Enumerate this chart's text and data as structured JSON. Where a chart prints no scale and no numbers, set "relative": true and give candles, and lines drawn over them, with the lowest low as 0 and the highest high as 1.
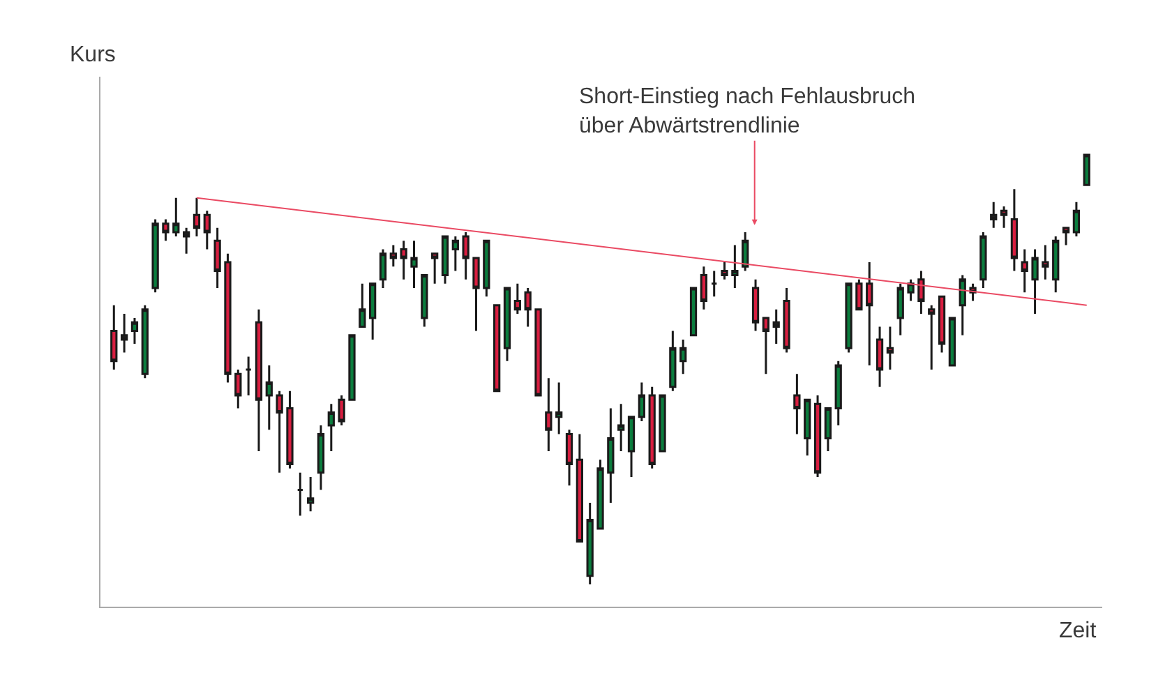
{
  "chart_data": {
    "type": "candlestick",
    "relative": true,
    "xlabel": "Zeit",
    "ylabel": "Kurs",
    "annotations": [
      "Short-Einstieg nach Fehlausbruch\nüber Abwärtstrendlinie"
    ],
    "categories": [
      null,
      null,
      null,
      null,
      null,
      null,
      null,
      null,
      null,
      null,
      null,
      null,
      null,
      null,
      null,
      null,
      null,
      null,
      null,
      null,
      null,
      null,
      null,
      null,
      null,
      null,
      null,
      null,
      null,
      null,
      null,
      null,
      null,
      null,
      null,
      null,
      null,
      null,
      null,
      null,
      null,
      null,
      null,
      null,
      null,
      null,
      null,
      null,
      null,
      null,
      null,
      null,
      null,
      null,
      null,
      null,
      null,
      null,
      null,
      null,
      null,
      null,
      null,
      null,
      null,
      null,
      null,
      null,
      null,
      null,
      null,
      null,
      null,
      null,
      null,
      null,
      null,
      null,
      null,
      null,
      null,
      null,
      null,
      null,
      null,
      null,
      null,
      null,
      null,
      null,
      null,
      null,
      null,
      null,
      null
    ],
    "ohlc": [
      [
        0.59,
        0.65,
        0.5,
        0.52
      ],
      [
        0.58,
        0.63,
        0.54,
        0.57
      ],
      [
        0.59,
        0.62,
        0.56,
        0.61
      ],
      [
        0.49,
        0.65,
        0.48,
        0.64
      ],
      [
        0.69,
        0.85,
        0.68,
        0.84
      ],
      [
        0.84,
        0.85,
        0.8,
        0.82
      ],
      [
        0.82,
        0.9,
        0.81,
        0.84
      ],
      [
        0.82,
        0.83,
        0.77,
        0.81
      ],
      [
        0.86,
        0.9,
        0.81,
        0.83
      ],
      [
        0.86,
        0.87,
        0.78,
        0.82
      ],
      [
        0.8,
        0.83,
        0.69,
        0.73
      ],
      [
        0.75,
        0.77,
        0.47,
        0.49
      ],
      [
        0.49,
        0.5,
        0.41,
        0.44
      ],
      [
        0.5,
        0.53,
        0.44,
        0.5
      ],
      [
        0.61,
        0.64,
        0.31,
        0.43
      ],
      [
        0.44,
        0.51,
        0.36,
        0.47
      ],
      [
        0.44,
        0.45,
        0.26,
        0.4
      ],
      [
        0.41,
        0.45,
        0.27,
        0.28
      ],
      [
        0.22,
        0.26,
        0.16,
        0.22
      ],
      [
        0.19,
        0.25,
        0.17,
        0.2
      ],
      [
        0.26,
        0.37,
        0.22,
        0.35
      ],
      [
        0.37,
        0.42,
        0.31,
        0.4
      ],
      [
        0.43,
        0.44,
        0.37,
        0.38
      ],
      [
        0.43,
        0.58,
        0.43,
        0.58
      ],
      [
        0.6,
        0.7,
        0.6,
        0.64
      ],
      [
        0.62,
        0.7,
        0.57,
        0.7
      ],
      [
        0.71,
        0.78,
        0.69,
        0.77
      ],
      [
        0.77,
        0.79,
        0.74,
        0.76
      ],
      [
        0.78,
        0.8,
        0.71,
        0.76
      ],
      [
        0.74,
        0.8,
        0.69,
        0.76
      ],
      [
        0.62,
        0.72,
        0.6,
        0.72
      ],
      [
        0.77,
        0.77,
        0.7,
        0.76
      ],
      [
        0.72,
        0.81,
        0.7,
        0.81
      ],
      [
        0.78,
        0.81,
        0.73,
        0.8
      ],
      [
        0.81,
        0.82,
        0.71,
        0.76
      ],
      [
        0.76,
        0.76,
        0.59,
        0.69
      ],
      [
        0.69,
        0.8,
        0.67,
        0.8
      ],
      [
        0.65,
        0.65,
        0.45,
        0.45
      ],
      [
        0.55,
        0.69,
        0.52,
        0.69
      ],
      [
        0.66,
        0.7,
        0.63,
        0.64
      ],
      [
        0.68,
        0.69,
        0.6,
        0.64
      ],
      [
        0.64,
        0.64,
        0.44,
        0.44
      ],
      [
        0.4,
        0.48,
        0.31,
        0.36
      ],
      [
        0.39,
        0.47,
        0.35,
        0.4
      ],
      [
        0.35,
        0.36,
        0.23,
        0.28
      ],
      [
        0.29,
        0.35,
        0.1,
        0.1
      ],
      [
        0.02,
        0.19,
        0,
        0.15
      ],
      [
        0.13,
        0.29,
        0.13,
        0.27
      ],
      [
        0.26,
        0.41,
        0.19,
        0.34
      ],
      [
        0.36,
        0.42,
        0.31,
        0.37
      ],
      [
        0.31,
        0.39,
        0.25,
        0.39
      ],
      [
        0.39,
        0.47,
        0.38,
        0.44
      ],
      [
        0.44,
        0.46,
        0.27,
        0.28
      ],
      [
        0.31,
        0.44,
        0.31,
        0.44
      ],
      [
        0.46,
        0.59,
        0.45,
        0.55
      ],
      [
        0.52,
        0.57,
        0.49,
        0.55
      ],
      [
        0.58,
        0.69,
        0.58,
        0.69
      ],
      [
        0.72,
        0.74,
        0.64,
        0.66
      ],
      [
        0.7,
        0.73,
        0.67,
        0.7
      ],
      [
        0.73,
        0.75,
        0.71,
        0.72
      ],
      [
        0.72,
        0.79,
        0.69,
        0.73
      ],
      [
        0.74,
        0.82,
        0.73,
        0.8
      ],
      [
        0.69,
        0.71,
        0.59,
        0.61
      ],
      [
        0.62,
        0.62,
        0.49,
        0.59
      ],
      [
        0.61,
        0.64,
        0.56,
        0.6
      ],
      [
        0.66,
        0.69,
        0.54,
        0.55
      ],
      [
        0.44,
        0.49,
        0.35,
        0.41
      ],
      [
        0.34,
        0.43,
        0.3,
        0.43
      ],
      [
        0.42,
        0.44,
        0.25,
        0.26
      ],
      [
        0.34,
        0.41,
        0.31,
        0.41
      ],
      [
        0.41,
        0.52,
        0.37,
        0.51
      ],
      [
        0.55,
        0.7,
        0.54,
        0.7
      ],
      [
        0.7,
        0.71,
        0.64,
        0.64
      ],
      [
        0.7,
        0.75,
        0.51,
        0.65
      ],
      [
        0.57,
        0.6,
        0.46,
        0.5
      ],
      [
        0.55,
        0.6,
        0.5,
        0.54
      ],
      [
        0.62,
        0.7,
        0.58,
        0.69
      ],
      [
        0.68,
        0.71,
        0.66,
        0.7
      ],
      [
        0.71,
        0.73,
        0.63,
        0.66
      ],
      [
        0.64,
        0.65,
        0.5,
        0.63
      ],
      [
        0.67,
        0.67,
        0.54,
        0.56
      ],
      [
        0.51,
        0.62,
        0.51,
        0.62
      ],
      [
        0.65,
        0.72,
        0.58,
        0.71
      ],
      [
        0.69,
        0.7,
        0.66,
        0.68
      ],
      [
        0.71,
        0.82,
        0.69,
        0.81
      ],
      [
        0.86,
        0.89,
        0.83,
        0.85
      ],
      [
        0.87,
        0.88,
        0.83,
        0.86
      ],
      [
        0.85,
        0.92,
        0.73,
        0.76
      ],
      [
        0.75,
        0.78,
        0.68,
        0.73
      ],
      [
        0.71,
        0.78,
        0.63,
        0.76
      ],
      [
        0.75,
        0.79,
        0.71,
        0.74
      ],
      [
        0.71,
        0.81,
        0.68,
        0.8
      ],
      [
        0.83,
        0.83,
        0.79,
        0.82
      ],
      [
        0.82,
        0.89,
        0.81,
        0.87
      ],
      [
        0.93,
        1,
        0.93,
        1
      ]
    ],
    "colors": [
      "#d81e40",
      "#222222",
      "#0b7d3e",
      "#0b7d3e",
      "#0b7d3e",
      "#d81e40",
      "#0b7d3e",
      "#222222",
      "#d81e40",
      "#d81e40",
      "#d81e40",
      "#d81e40",
      "#d81e40",
      "#222222",
      "#d81e40",
      "#0b7d3e",
      "#d81e40",
      "#d81e40",
      "#222222",
      "#0b7d3e",
      "#0b7d3e",
      "#0b7d3e",
      "#d81e40",
      "#0b7d3e",
      "#0b7d3e",
      "#0b7d3e",
      "#0b7d3e",
      "#d81e40",
      "#d81e40",
      "#0b7d3e",
      "#0b7d3e",
      "#d81e40",
      "#0b7d3e",
      "#0b7d3e",
      "#d81e40",
      "#d81e40",
      "#0b7d3e",
      "#d81e40",
      "#0b7d3e",
      "#d81e40",
      "#d81e40",
      "#d81e40",
      "#d81e40",
      "#0b7d3e",
      "#d81e40",
      "#d81e40",
      "#0b7d3e",
      "#0b7d3e",
      "#0b7d3e",
      "#0b7d3e",
      "#0b7d3e",
      "#0b7d3e",
      "#d81e40",
      "#0b7d3e",
      "#0b7d3e",
      "#0b7d3e",
      "#0b7d3e",
      "#d81e40",
      "#222222",
      "#d81e40",
      "#0b7d3e",
      "#0b7d3e",
      "#d81e40",
      "#d81e40",
      "#222222",
      "#d81e40",
      "#d81e40",
      "#0b7d3e",
      "#d81e40",
      "#0b7d3e",
      "#0b7d3e",
      "#0b7d3e",
      "#d81e40",
      "#d81e40",
      "#d81e40",
      "#d81e40",
      "#0b7d3e",
      "#0b7d3e",
      "#d81e40",
      "#d81e40",
      "#d81e40",
      "#0b7d3e",
      "#0b7d3e",
      "#d81e40",
      "#0b7d3e",
      "#222222",
      "#d81e40",
      "#d81e40",
      "#d81e40",
      "#0b7d3e",
      "#d81e40",
      "#0b7d3e",
      "#d81e40",
      "#0b7d3e",
      "#0b7d3e"
    ],
    "series": [
      {
        "type": "line",
        "color": "#ea4a63",
        "values": [
          null,
          null,
          null,
          null,
          null,
          null,
          null,
          null,
          0.9,
          null,
          null,
          null,
          null,
          null,
          null,
          null,
          null,
          null,
          null,
          null,
          null,
          null,
          null,
          null,
          null,
          null,
          null,
          null,
          null,
          null,
          null,
          null,
          null,
          null,
          null,
          null,
          null,
          null,
          null,
          null,
          null,
          null,
          null,
          null,
          null,
          null,
          null,
          null,
          null,
          null,
          null,
          null,
          null,
          null,
          null,
          null,
          null,
          null,
          null,
          null,
          null,
          null,
          null,
          null,
          null,
          null,
          null,
          null,
          null,
          null,
          null,
          null,
          null,
          null,
          null,
          null,
          null,
          null,
          null,
          null,
          null,
          null,
          null,
          null,
          null,
          null,
          null,
          null,
          null,
          null,
          null,
          null,
          null,
          null,
          0.65
        ]
      }
    ]
  }
}
